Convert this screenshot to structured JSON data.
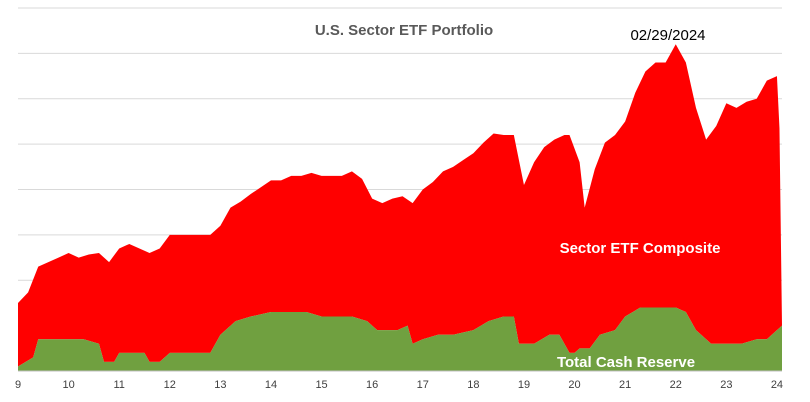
{
  "chart_data": {
    "type": "area",
    "stacked": true,
    "title": "U.S. Sector ETF Portfolio",
    "date_label": "02/29/2024",
    "xlabel": "",
    "ylabel": "",
    "grid": true,
    "legend": "none",
    "xlim": [
      9,
      24.1
    ],
    "ylim": [
      0,
      8
    ],
    "x_ticks": [
      "9",
      "10",
      "11",
      "12",
      "13",
      "14",
      "15",
      "16",
      "17",
      "18",
      "19",
      "20",
      "21",
      "22",
      "23",
      "24"
    ],
    "colors": {
      "composite": "#ff0000",
      "cash": "#70a040"
    },
    "series": [
      {
        "name": "Total Cash Reserve",
        "color": "#70a040",
        "x": [
          9.0,
          9.3,
          9.4,
          9.7,
          10.0,
          10.3,
          10.6,
          10.7,
          10.9,
          11.0,
          11.5,
          11.6,
          11.8,
          12.0,
          12.2,
          12.5,
          12.8,
          13.0,
          13.3,
          13.6,
          14.0,
          14.3,
          14.7,
          15.0,
          15.3,
          15.6,
          15.9,
          16.1,
          16.5,
          16.7,
          16.8,
          17.0,
          17.3,
          17.6,
          18.0,
          18.3,
          18.6,
          18.8,
          18.9,
          19.2,
          19.5,
          19.7,
          19.9,
          20.0,
          20.1,
          20.3,
          20.5,
          20.8,
          21.0,
          21.3,
          21.6,
          21.8,
          22.0,
          22.2,
          22.4,
          22.7,
          23.0,
          23.3,
          23.6,
          23.8,
          24.0,
          24.1
        ],
        "values": [
          0.1,
          0.3,
          0.7,
          0.7,
          0.7,
          0.7,
          0.6,
          0.2,
          0.2,
          0.4,
          0.4,
          0.2,
          0.2,
          0.4,
          0.4,
          0.4,
          0.4,
          0.8,
          1.1,
          1.2,
          1.3,
          1.3,
          1.3,
          1.2,
          1.2,
          1.2,
          1.1,
          0.9,
          0.9,
          1.0,
          0.6,
          0.7,
          0.8,
          0.8,
          0.9,
          1.1,
          1.2,
          1.2,
          0.6,
          0.6,
          0.8,
          0.8,
          0.4,
          0.4,
          0.5,
          0.5,
          0.8,
          0.9,
          1.2,
          1.4,
          1.4,
          1.4,
          1.4,
          1.3,
          0.9,
          0.6,
          0.6,
          0.6,
          0.7,
          0.7,
          0.9,
          1.0
        ]
      },
      {
        "name": "Sector ETF Composite",
        "color": "#ff0000",
        "x": [
          9.0,
          9.2,
          9.4,
          9.6,
          9.8,
          10.0,
          10.2,
          10.4,
          10.6,
          10.8,
          11.0,
          11.2,
          11.4,
          11.6,
          11.8,
          12.0,
          12.2,
          12.4,
          12.6,
          12.8,
          13.0,
          13.2,
          13.4,
          13.6,
          13.8,
          14.0,
          14.2,
          14.4,
          14.6,
          14.8,
          15.0,
          15.2,
          15.4,
          15.6,
          15.8,
          16.0,
          16.2,
          16.4,
          16.6,
          16.8,
          17.0,
          17.2,
          17.4,
          17.6,
          17.8,
          18.0,
          18.2,
          18.4,
          18.6,
          18.8,
          19.0,
          19.2,
          19.4,
          19.6,
          19.8,
          19.9,
          20.0,
          20.1,
          20.2,
          20.4,
          20.6,
          20.8,
          21.0,
          21.2,
          21.4,
          21.6,
          21.8,
          22.0,
          22.2,
          22.4,
          22.6,
          22.8,
          23.0,
          23.2,
          23.4,
          23.6,
          23.8,
          24.0,
          24.05,
          24.1
        ],
        "values": [
          1.4,
          1.5,
          1.6,
          1.7,
          1.8,
          1.9,
          1.8,
          1.9,
          2.0,
          2.2,
          2.3,
          2.4,
          2.3,
          2.4,
          2.5,
          2.6,
          2.6,
          2.6,
          2.6,
          2.6,
          2.4,
          2.6,
          2.6,
          2.7,
          2.8,
          2.9,
          2.9,
          3.0,
          3.0,
          3.1,
          3.1,
          3.1,
          3.1,
          3.2,
          3.1,
          2.8,
          2.8,
          2.9,
          2.9,
          3.1,
          3.3,
          3.4,
          3.6,
          3.7,
          3.8,
          3.9,
          4.0,
          4.1,
          4.0,
          4.0,
          3.5,
          4.0,
          4.2,
          4.3,
          4.6,
          4.8,
          4.5,
          4.1,
          3.1,
          3.8,
          4.2,
          4.3,
          4.3,
          4.8,
          5.2,
          5.4,
          5.4,
          5.8,
          5.5,
          4.9,
          4.4,
          4.8,
          5.3,
          5.2,
          5.3,
          5.3,
          5.7,
          5.6,
          4.4,
          0.0
        ]
      }
    ]
  }
}
